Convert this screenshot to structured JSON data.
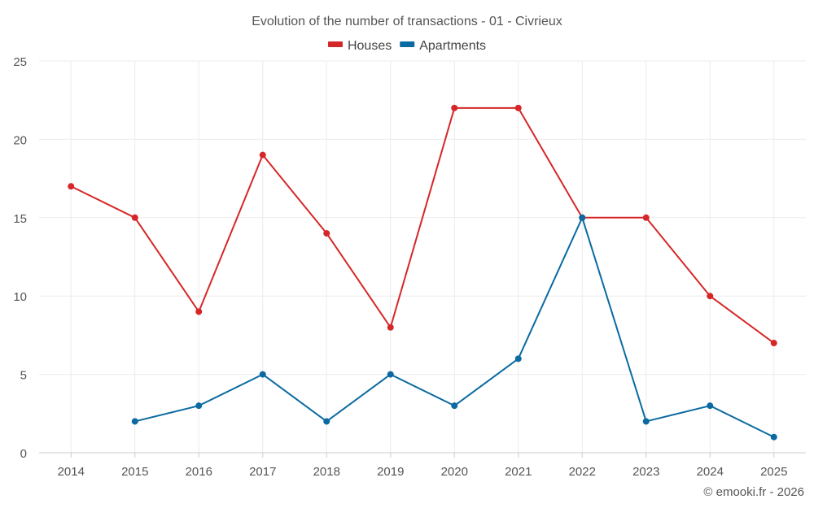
{
  "chart_data": {
    "type": "line",
    "title": "Evolution of the number of transactions - 01 - Civrieux",
    "categories": [
      "2014",
      "2015",
      "2016",
      "2017",
      "2018",
      "2019",
      "2020",
      "2021",
      "2022",
      "2023",
      "2024",
      "2025"
    ],
    "series": [
      {
        "name": "Houses",
        "color": "#d62728",
        "values": [
          17,
          15,
          9,
          19,
          14,
          8,
          22,
          22,
          15,
          15,
          10,
          7
        ]
      },
      {
        "name": "Apartments",
        "color": "#0a6aa1",
        "values": [
          null,
          2,
          3,
          5,
          2,
          5,
          3,
          6,
          15,
          2,
          3,
          1
        ]
      }
    ],
    "ylim": [
      0,
      25
    ],
    "yticks": [
      0,
      5,
      10,
      15,
      20,
      25
    ],
    "grid": true,
    "legend_position": "top-center",
    "xlabel": "",
    "ylabel": ""
  },
  "credit": "© emooki.fr - 2026"
}
